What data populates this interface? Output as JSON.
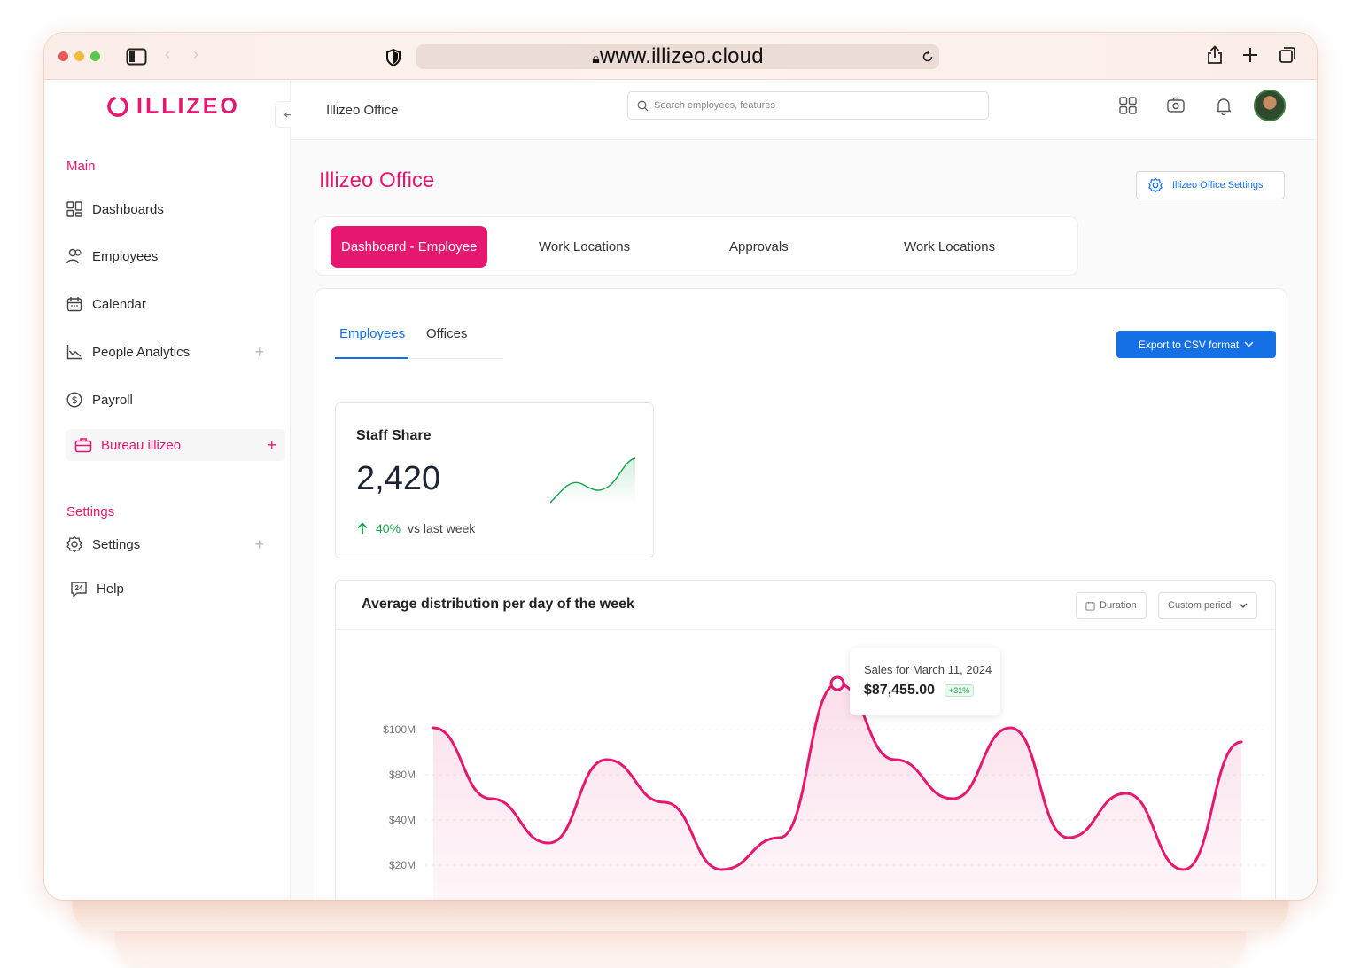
{
  "browser": {
    "url": "www.illizeo.cloud"
  },
  "logo": {
    "text": "ILLIZEO"
  },
  "topbar": {
    "breadcrumb": "Illizeo Office",
    "search_placeholder": "Search employees, features"
  },
  "sidebar": {
    "main_section": "Main",
    "items": [
      {
        "label": "Dashboards",
        "icon": "grid-icon"
      },
      {
        "label": "Employees",
        "icon": "users-icon"
      },
      {
        "label": "Calendar",
        "icon": "calendar-icon"
      },
      {
        "label": "People Analytics",
        "icon": "chart-line-icon",
        "expandable": true
      },
      {
        "label": "Payroll",
        "icon": "dollar-icon"
      },
      {
        "label": "Bureau illizeo",
        "icon": "briefcase-icon",
        "expandable": true,
        "active": true
      }
    ],
    "settings_section": "Settings",
    "settings_items": [
      {
        "label": "Settings",
        "icon": "gear-icon",
        "expandable": true
      },
      {
        "label": "Help",
        "icon": "help-24-icon"
      }
    ]
  },
  "page": {
    "title": "Illizeo Office",
    "settings_button": "Illizeo Office Settings",
    "tabs": [
      "Dashboard - Employee",
      "Work Locations",
      "Approvals",
      "Work Locations"
    ],
    "active_tab": 0,
    "subtabs": [
      "Employees",
      "Offices"
    ],
    "active_subtab": 0,
    "export_button": "Export to CSV format"
  },
  "stat_card": {
    "title": "Staff Share",
    "value": "2,420",
    "delta": "40%",
    "delta_label": "vs last week"
  },
  "chart_section": {
    "title": "Average distribution per day of the week",
    "duration_button": "Duration",
    "period_select": "Custom period",
    "tooltip": {
      "label": "Sales for March 11, 2024",
      "value": "$87,455.00",
      "badge": "+31%"
    }
  },
  "colors": {
    "brand": "#e5176f",
    "accent_blue": "#1670e5",
    "positive": "#16a34a"
  },
  "chart_data": {
    "type": "area",
    "yticks": [
      "$100M",
      "$80M",
      "$40M",
      "$20M"
    ],
    "values": [
      100,
      60,
      35,
      82,
      58,
      20,
      38,
      125,
      82,
      60,
      100,
      38,
      63,
      20,
      92
    ]
  }
}
